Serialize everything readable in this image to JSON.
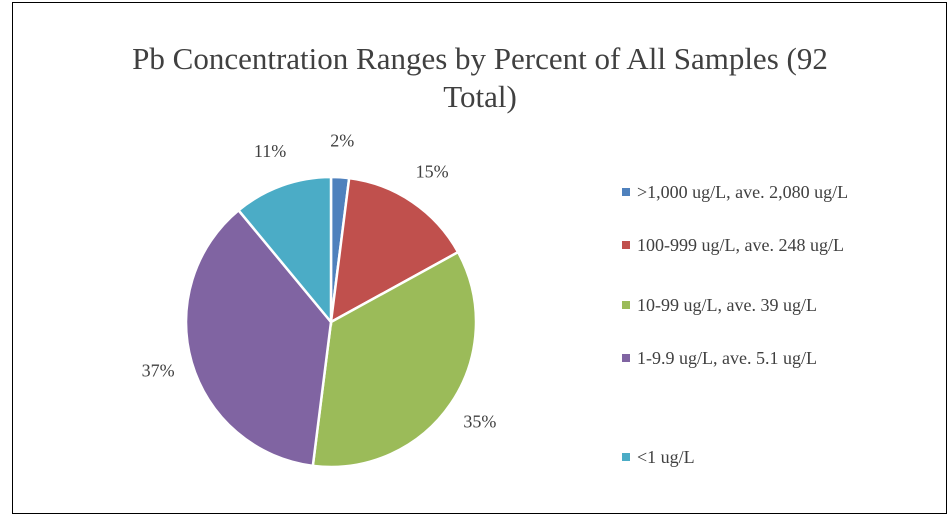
{
  "chart_data": {
    "type": "pie",
    "title": "Pb Concentration Ranges by Percent of All Samples (92 Total)",
    "categories": [
      ">1,000 ug/L, ave. 2,080 ug/L",
      "100-999  ug/L, ave. 248 ug/L",
      "10-99 ug/L, ave. 39 ug/L",
      "1-9.9 ug/L, ave. 5.1 ug/L",
      "<1 ug/L"
    ],
    "values": [
      2,
      15,
      35,
      37,
      11
    ],
    "value_labels": [
      "2%",
      "15%",
      "35%",
      "37%",
      "11%"
    ],
    "colors": [
      "#4f81bd",
      "#c0504d",
      "#9bbb59",
      "#8064a2",
      "#4bacc6"
    ],
    "legend": "right"
  }
}
